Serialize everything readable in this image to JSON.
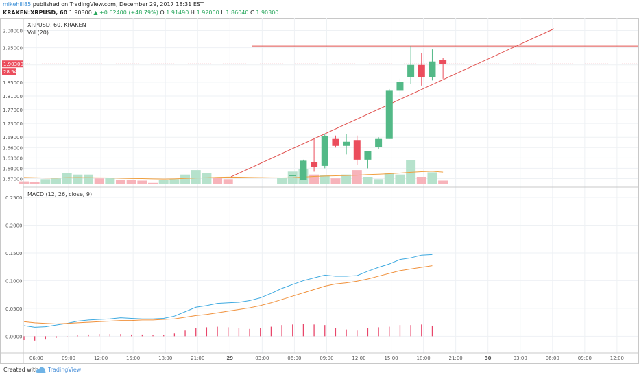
{
  "header": {
    "author": "mikehill85",
    "published": "published on TradingView.com, December 29, 2017 18:31 EST",
    "symbol": "KRAKEN:XRPUSD, 60",
    "last": "1.90300",
    "change": "▲ +0.62400 (+48.79%)",
    "ohlc_o_label": "O:",
    "ohlc_o": "1.91490",
    "ohlc_h_label": "H:",
    "ohlc_h": "1.92000",
    "ohlc_l_label": "L:",
    "ohlc_l": "1.86040",
    "ohlc_c_label": "C:",
    "ohlc_c": "1.90300"
  },
  "footer": {
    "created_with": "Created with",
    "brand": "TradingView"
  },
  "colors": {
    "up": "#53b987",
    "down": "#eb4d5c",
    "vol_up": "#b6e2cc",
    "vol_down": "#f7b3ba",
    "vol_ma": "#f0a040",
    "macd": "#3da9e0",
    "signal": "#f0913c",
    "hist": "#e8456a",
    "trend": "#e0504d"
  },
  "chart_data": [
    {
      "type": "candlestick",
      "title": "XRPUSD, 60, KRAKEN",
      "series_label": "Vol (20)",
      "price_label": "1.90300",
      "volume_label": "28.54",
      "yticks": [
        "2.00000",
        "1.95000",
        "1.90000",
        "1.85000",
        "1.81000",
        "1.77000",
        "1.73000",
        "1.69000",
        "1.66000",
        "1.63000",
        "1.60000",
        "1.57000"
      ],
      "candles": [
        {
          "i": 25,
          "o": 1.579,
          "h": 1.579,
          "l": 1.579,
          "c": 1.579
        },
        {
          "i": 26,
          "o": 1.565,
          "h": 1.625,
          "l": 1.565,
          "c": 1.622
        },
        {
          "i": 27,
          "o": 1.617,
          "h": 1.685,
          "l": 1.59,
          "c": 1.603
        },
        {
          "i": 28,
          "o": 1.607,
          "h": 1.7,
          "l": 1.6,
          "c": 1.693
        },
        {
          "i": 29,
          "o": 1.685,
          "h": 1.695,
          "l": 1.66,
          "c": 1.665
        },
        {
          "i": 30,
          "o": 1.665,
          "h": 1.7,
          "l": 1.64,
          "c": 1.677
        },
        {
          "i": 31,
          "o": 1.682,
          "h": 1.695,
          "l": 1.61,
          "c": 1.625
        },
        {
          "i": 32,
          "o": 1.625,
          "h": 1.65,
          "l": 1.6,
          "c": 1.65
        },
        {
          "i": 33,
          "o": 1.662,
          "h": 1.69,
          "l": 1.655,
          "c": 1.685
        },
        {
          "i": 34,
          "o": 1.685,
          "h": 1.83,
          "l": 1.685,
          "c": 1.825
        },
        {
          "i": 35,
          "o": 1.825,
          "h": 1.86,
          "l": 1.81,
          "c": 1.85
        },
        {
          "i": 36,
          "o": 1.865,
          "h": 1.955,
          "l": 1.845,
          "c": 1.9
        },
        {
          "i": 37,
          "o": 1.9,
          "h": 1.935,
          "l": 1.84,
          "c": 1.865
        },
        {
          "i": 38,
          "o": 1.865,
          "h": 1.945,
          "l": 1.855,
          "c": 1.91
        },
        {
          "i": 39,
          "o": 1.915,
          "h": 1.92,
          "l": 1.86,
          "c": 1.903
        }
      ],
      "volume": [
        {
          "i": 0,
          "v": 0.4,
          "d": 1
        },
        {
          "i": 1,
          "v": 0.3,
          "d": 1
        },
        {
          "i": 2,
          "v": 0.7,
          "d": 0
        },
        {
          "i": 3,
          "v": 0.8,
          "d": 0
        },
        {
          "i": 4,
          "v": 1.5,
          "d": 0
        },
        {
          "i": 5,
          "v": 1.3,
          "d": 0
        },
        {
          "i": 6,
          "v": 1.3,
          "d": 0
        },
        {
          "i": 7,
          "v": 0.8,
          "d": 1
        },
        {
          "i": 8,
          "v": 0.9,
          "d": 0
        },
        {
          "i": 9,
          "v": 0.6,
          "d": 1
        },
        {
          "i": 10,
          "v": 0.6,
          "d": 1
        },
        {
          "i": 11,
          "v": 0.5,
          "d": 1
        },
        {
          "i": 12,
          "v": 0.2,
          "d": 1
        },
        {
          "i": 13,
          "v": 0.6,
          "d": 0
        },
        {
          "i": 14,
          "v": 0.7,
          "d": 0
        },
        {
          "i": 15,
          "v": 1.3,
          "d": 0
        },
        {
          "i": 16,
          "v": 1.9,
          "d": 0
        },
        {
          "i": 17,
          "v": 1.5,
          "d": 0
        },
        {
          "i": 18,
          "v": 0.9,
          "d": 1
        },
        {
          "i": 19,
          "v": 0.7,
          "d": 1
        },
        {
          "i": 20,
          "v": 0.0,
          "d": 0
        },
        {
          "i": 21,
          "v": 0.0,
          "d": 0
        },
        {
          "i": 22,
          "v": 0.0,
          "d": 0
        },
        {
          "i": 23,
          "v": 0.0,
          "d": 0
        },
        {
          "i": 24,
          "v": 0.9,
          "d": 0
        },
        {
          "i": 25,
          "v": 1.7,
          "d": 0
        },
        {
          "i": 26,
          "v": 2.0,
          "d": 0
        },
        {
          "i": 27,
          "v": 1.3,
          "d": 1
        },
        {
          "i": 28,
          "v": 1.2,
          "d": 0
        },
        {
          "i": 29,
          "v": 0.8,
          "d": 1
        },
        {
          "i": 30,
          "v": 1.3,
          "d": 0
        },
        {
          "i": 31,
          "v": 1.9,
          "d": 1
        },
        {
          "i": 32,
          "v": 1.0,
          "d": 0
        },
        {
          "i": 33,
          "v": 0.7,
          "d": 0
        },
        {
          "i": 34,
          "v": 1.5,
          "d": 0
        },
        {
          "i": 35,
          "v": 1.3,
          "d": 0
        },
        {
          "i": 36,
          "v": 3.2,
          "d": 0
        },
        {
          "i": 37,
          "v": 1.0,
          "d": 1
        },
        {
          "i": 38,
          "v": 1.6,
          "d": 0
        },
        {
          "i": 39,
          "v": 0.5,
          "d": 1
        }
      ],
      "vol_ma": [
        0.92,
        0.89,
        0.85,
        0.84,
        0.89,
        0.9,
        0.89,
        0.88,
        0.86,
        0.82,
        0.78,
        0.77,
        0.74,
        0.72,
        0.74,
        0.79,
        0.85,
        0.88,
        0.93,
        0.97,
        0.96,
        0.92,
        0.9,
        0.88,
        0.86,
        0.89,
        0.97,
        1.05,
        1.1,
        1.14,
        1.17,
        1.22,
        1.29,
        1.34,
        1.41,
        1.5,
        1.6,
        1.68,
        1.74,
        1.62
      ]
    },
    {
      "type": "line",
      "title": "MACD (12, 26, close, 9)",
      "yticks": [
        "0.2500",
        "0.2000",
        "0.1500",
        "0.1000",
        "0.0500",
        "0.0000"
      ],
      "macd": [
        0.019,
        0.016,
        0.017,
        0.02,
        0.023,
        0.027,
        0.029,
        0.03,
        0.031,
        0.033,
        0.032,
        0.031,
        0.031,
        0.032,
        0.036,
        0.044,
        0.052,
        0.055,
        0.059,
        0.06,
        0.061,
        0.064,
        0.069,
        0.077,
        0.086,
        0.093,
        0.1,
        0.105,
        0.11,
        0.108,
        0.108,
        0.109,
        0.117,
        0.124,
        0.13,
        0.138,
        0.141,
        0.146,
        0.147
      ],
      "signal": [
        0.026,
        0.024,
        0.023,
        0.022,
        0.023,
        0.024,
        0.025,
        0.026,
        0.027,
        0.028,
        0.028,
        0.029,
        0.029,
        0.03,
        0.031,
        0.034,
        0.037,
        0.039,
        0.042,
        0.045,
        0.048,
        0.051,
        0.055,
        0.06,
        0.066,
        0.072,
        0.078,
        0.084,
        0.09,
        0.094,
        0.096,
        0.099,
        0.103,
        0.108,
        0.113,
        0.118,
        0.121,
        0.124,
        0.127
      ],
      "hist": [
        -0.007,
        -0.008,
        -0.006,
        -0.003,
        -0.001,
        0.001,
        0.003,
        0.004,
        0.004,
        0.004,
        0.003,
        0.003,
        0.002,
        0.002,
        0.005,
        0.01,
        0.015,
        0.016,
        0.017,
        0.016,
        0.014,
        0.013,
        0.014,
        0.017,
        0.02,
        0.021,
        0.022,
        0.021,
        0.02,
        0.014,
        0.012,
        0.01,
        0.014,
        0.016,
        0.017,
        0.02,
        0.02,
        0.021,
        0.019
      ]
    },
    {
      "type": "axis",
      "xticks": [
        "06:00",
        "09:00",
        "12:00",
        "15:00",
        "18:00",
        "21:00",
        "29",
        "03:00",
        "06:00",
        "09:00",
        "12:00",
        "15:00",
        "18:00",
        "21:00",
        "30",
        "03:00",
        "06:00",
        "09:00",
        "12:00"
      ]
    }
  ]
}
